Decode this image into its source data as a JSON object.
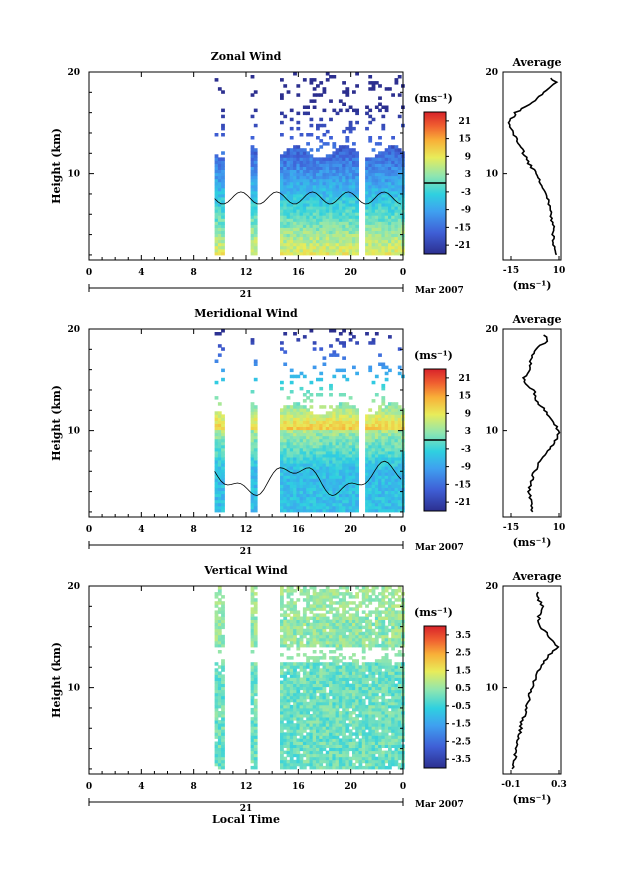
{
  "figure": {
    "xlabel": "Local Time",
    "date_label": "Mar 2007",
    "day_label": "21"
  },
  "chart_data": [
    {
      "type": "heatmap",
      "title": "Zonal Wind",
      "ylabel": "Height (km)",
      "xlabel": "Local Time",
      "x_ticks": [
        "0",
        "4",
        "8",
        "12",
        "16",
        "20",
        "0"
      ],
      "y_ticks": [
        "20",
        "10"
      ],
      "xlim": [
        0,
        24
      ],
      "ylim": [
        1.5,
        20
      ],
      "colorbar": {
        "unit": "(ms⁻¹)",
        "ticks": [
          "21",
          "15",
          "9",
          "3",
          "-3",
          "-9",
          "-15",
          "-21"
        ],
        "range": [
          -24,
          24
        ],
        "zero_line": true
      },
      "data_gaps_hours": [
        [
          0,
          9.6
        ],
        [
          10.2,
          12.2
        ],
        [
          12.7,
          14.5
        ],
        [
          20.6,
          21.0
        ]
      ],
      "profile": {
        "title": "Average",
        "x_ticks": [
          "-15",
          "10"
        ],
        "x_unit": "(ms⁻¹)",
        "xlim": [
          -20,
          11
        ],
        "y_ticks": [
          "20",
          "10"
        ],
        "heights_km": [
          2,
          4,
          6,
          8,
          10,
          11,
          12,
          13,
          14,
          15,
          16,
          17,
          18,
          19,
          19.5
        ],
        "values": [
          8,
          7,
          6,
          3,
          -2,
          -6,
          -9,
          -12,
          -15,
          -17,
          -13,
          -5,
          2,
          8,
          6
        ]
      }
    },
    {
      "type": "heatmap",
      "title": "Meridional Wind",
      "ylabel": "Height (km)",
      "xlabel": "Local Time",
      "x_ticks": [
        "0",
        "4",
        "8",
        "12",
        "16",
        "20",
        "0"
      ],
      "y_ticks": [
        "20",
        "10"
      ],
      "xlim": [
        0,
        24
      ],
      "ylim": [
        1.5,
        20
      ],
      "colorbar": {
        "unit": "(ms⁻¹)",
        "ticks": [
          "21",
          "15",
          "9",
          "3",
          "-3",
          "-9",
          "-15",
          "-21"
        ],
        "range": [
          -24,
          24
        ],
        "zero_line": true
      },
      "data_gaps_hours": [
        [
          0,
          9.6
        ],
        [
          10.2,
          12.2
        ],
        [
          12.7,
          14.5
        ],
        [
          20.6,
          21.0
        ]
      ],
      "profile": {
        "title": "Average",
        "x_ticks": [
          "-15",
          "10"
        ],
        "x_unit": "(ms⁻¹)",
        "xlim": [
          -20,
          11
        ],
        "y_ticks": [
          "20",
          "10"
        ],
        "heights_km": [
          2,
          4,
          6,
          7,
          8,
          9,
          10,
          11,
          12,
          13,
          14,
          15,
          16,
          17,
          18,
          19,
          19.5
        ],
        "values": [
          -5,
          -6,
          -3,
          -1,
          4,
          8,
          10,
          6,
          2,
          -2,
          -4,
          -9,
          -6,
          -5,
          -2,
          4,
          1
        ]
      }
    },
    {
      "type": "heatmap",
      "title": "Vertical Wind",
      "ylabel": "Height (km)",
      "xlabel": "Local Time",
      "x_ticks": [
        "0",
        "4",
        "8",
        "12",
        "16",
        "20",
        "0"
      ],
      "y_ticks": [
        "20",
        "10"
      ],
      "xlim": [
        0,
        24
      ],
      "ylim": [
        1.5,
        20
      ],
      "colorbar": {
        "unit": "(ms⁻¹)",
        "ticks": [
          "3.5",
          "2.5",
          "1.5",
          "0.5",
          "-0.5",
          "-1.5",
          "-2.5",
          "-3.5"
        ],
        "range": [
          -4,
          4
        ],
        "zero_line": false
      },
      "data_gaps_hours": [
        [
          0,
          9.6
        ],
        [
          10.2,
          12.2
        ],
        [
          12.7,
          14.5
        ]
      ],
      "profile": {
        "title": "Average",
        "x_ticks": [
          "-0.1",
          "0.3"
        ],
        "x_unit": "(ms⁻¹)",
        "xlim": [
          -0.2,
          0.3
        ],
        "y_ticks": [
          "20",
          "10"
        ],
        "heights_km": [
          2,
          4,
          6,
          8,
          10,
          11,
          12,
          13,
          14,
          15,
          16,
          17,
          18,
          19,
          19.5
        ],
        "values": [
          -0.12,
          -0.08,
          -0.05,
          0.0,
          0.05,
          0.08,
          0.12,
          0.18,
          0.27,
          0.2,
          0.12,
          0.1,
          0.15,
          0.08,
          0.1
        ]
      }
    }
  ]
}
